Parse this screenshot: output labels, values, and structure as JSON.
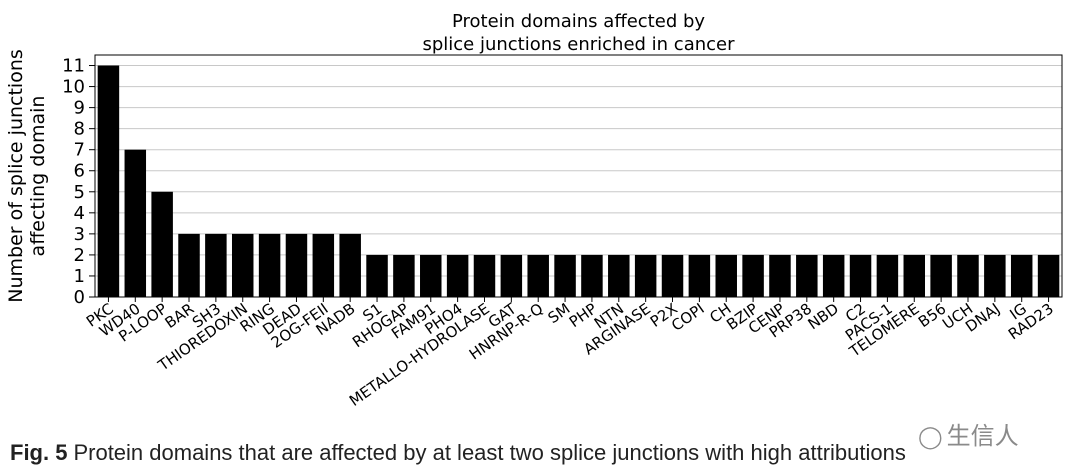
{
  "chart_data": {
    "type": "bar",
    "title": [
      "Protein domains affected by",
      "splice junctions enriched in cancer"
    ],
    "ylabel": [
      "Number of splice junctions",
      "affecting domain"
    ],
    "xlabel": "",
    "ylim": [
      0,
      11.5
    ],
    "yticks": [
      0,
      1,
      2,
      3,
      4,
      5,
      6,
      7,
      8,
      9,
      10,
      11
    ],
    "grid": "horizontal",
    "bar_color": "#000000",
    "categories": [
      "PKC",
      "WD40",
      "P-LOOP",
      "BAR",
      "SH3",
      "THIOREDOXIN",
      "RING",
      "DEAD",
      "2OG-FEII",
      "NADB",
      "S1",
      "RHOGAP",
      "FAM91",
      "PHO4",
      "METALLO-HYDROLASE",
      "GAT",
      "HNRNP-R-Q",
      "SM",
      "PHP",
      "NTN",
      "ARGINASE",
      "P2X",
      "COPI",
      "CH",
      "BZIP",
      "CENP",
      "PRP38",
      "NBD",
      "C2",
      "PACS-1",
      "TELOMERE",
      "B56",
      "UCH",
      "DNAJ",
      "IG",
      "RAD23"
    ],
    "values": [
      11,
      7,
      5,
      3,
      3,
      3,
      3,
      3,
      3,
      3,
      2,
      2,
      2,
      2,
      2,
      2,
      2,
      2,
      2,
      2,
      2,
      2,
      2,
      2,
      2,
      2,
      2,
      2,
      2,
      2,
      2,
      2,
      2,
      2,
      2,
      2
    ]
  },
  "caption": {
    "label": "Fig. 5",
    "text": "Protein domains that are affected by at least two splice junctions with high attributions"
  },
  "watermark": {
    "icon": "wechat-icon",
    "text": "生信人"
  }
}
